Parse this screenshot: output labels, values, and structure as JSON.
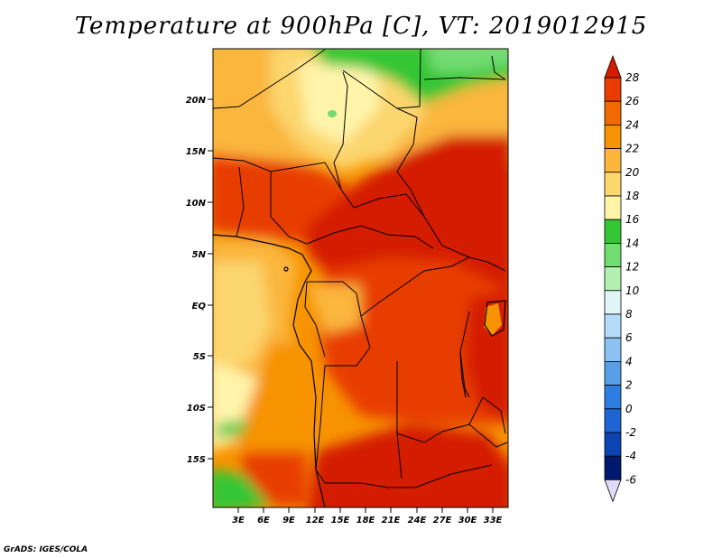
{
  "title": "Temperature at 900hPa [C], VT: 2019012915",
  "credit": "GrADS: IGES/COLA",
  "lat_ticks": [
    "20N",
    "15N",
    "10N",
    "5N",
    "EQ",
    "5S",
    "10S",
    "15S"
  ],
  "lon_ticks": [
    "3E",
    "6E",
    "9E",
    "12E",
    "15E",
    "18E",
    "21E",
    "24E",
    "27E",
    "30E",
    "33E"
  ],
  "colorbar": {
    "labels": [
      "28",
      "26",
      "24",
      "22",
      "20",
      "18",
      "16",
      "14",
      "12",
      "10",
      "8",
      "6",
      "4",
      "2",
      "0",
      "-2",
      "-4",
      "-6"
    ],
    "colors_top_to_bottom": [
      "#d41c00",
      "#e83c00",
      "#f06a00",
      "#f79300",
      "#fab63c",
      "#fcd66e",
      "#fff4aa",
      "#34c634",
      "#72dc72",
      "#b2f0b2",
      "#e0f6f6",
      "#b4dcf8",
      "#8cc2f4",
      "#5a9ee8",
      "#2e7ee2",
      "#1e64d2",
      "#0c44b4",
      "#00186e",
      "#e0dcf8"
    ]
  }
}
